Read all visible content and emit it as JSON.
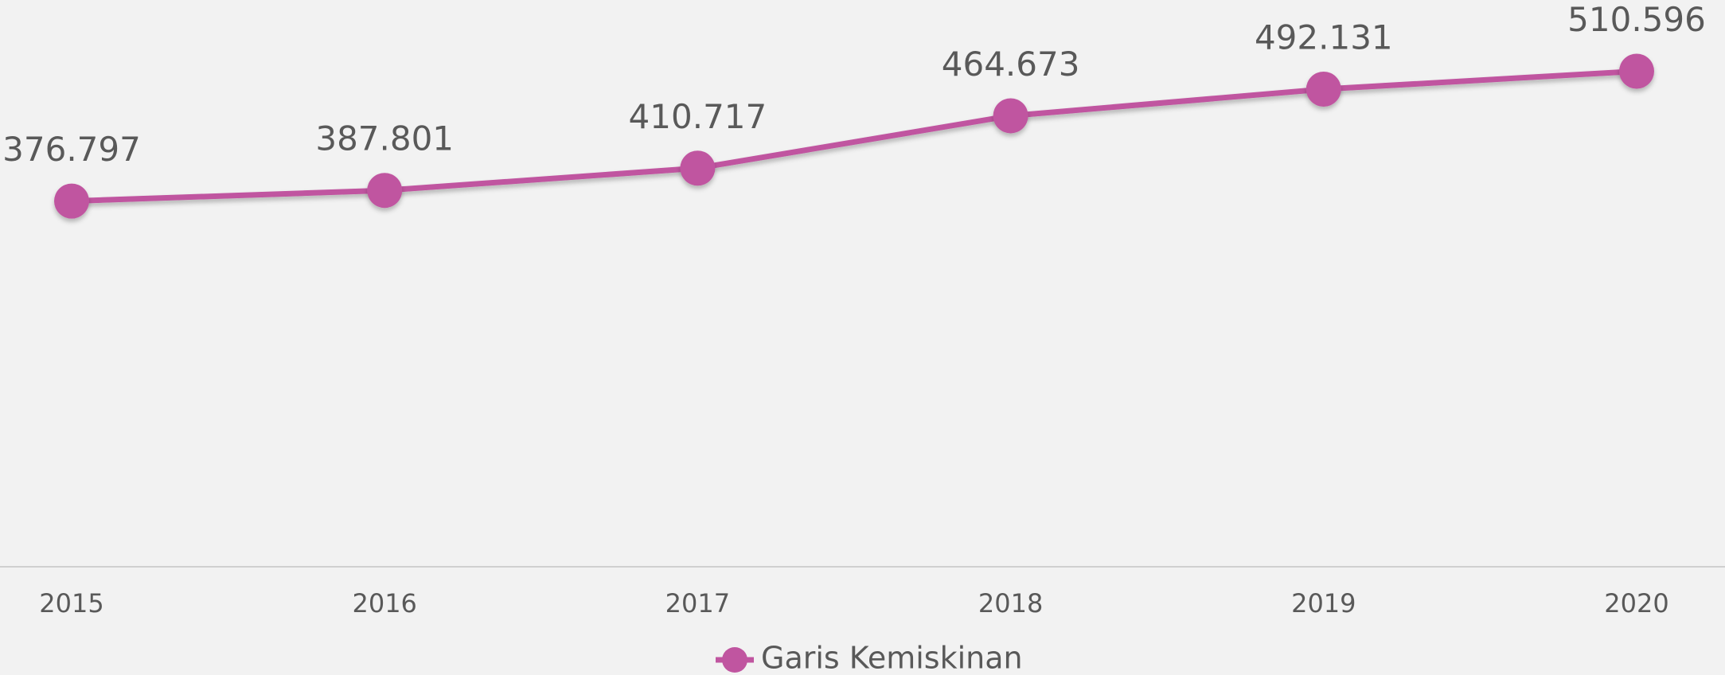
{
  "chart_data": {
    "type": "line",
    "categories": [
      "2015",
      "2016",
      "2017",
      "2018",
      "2019",
      "2020"
    ],
    "series": [
      {
        "name": "Garis Kemiskinan",
        "color": "#c055a0",
        "values": [
          376.797,
          387.801,
          410.717,
          464.673,
          492.131,
          510.596
        ]
      }
    ],
    "ylim": [
      0,
      584
    ]
  }
}
